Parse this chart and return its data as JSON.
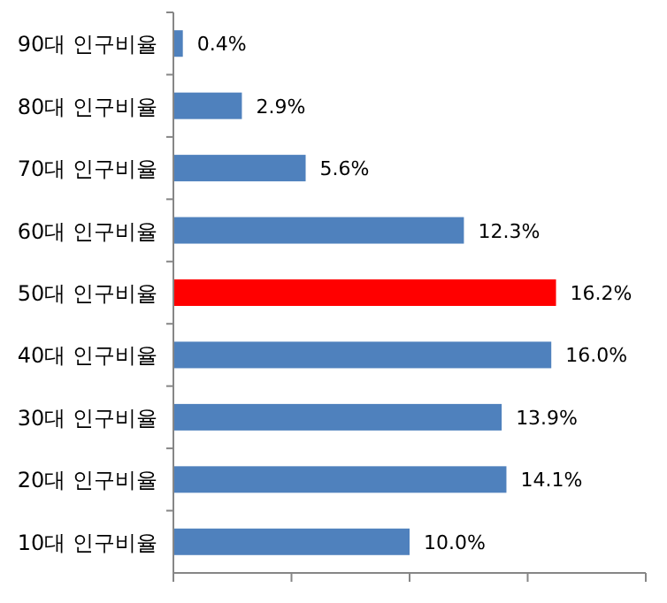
{
  "chart_data": {
    "type": "bar",
    "orientation": "horizontal",
    "categories": [
      "90대 인구비율",
      "80대 인구비율",
      "70대 인구비율",
      "60대 인구비율",
      "50대 인구비율",
      "40대 인구비율",
      "30대 인구비율",
      "20대 인구비율",
      "10대 인구비율"
    ],
    "values": [
      0.4,
      2.9,
      5.6,
      12.3,
      16.2,
      16.0,
      13.9,
      14.1,
      10.0
    ],
    "value_labels": [
      "0.4%",
      "2.9%",
      "5.6%",
      "12.3%",
      "16.2%",
      "16.0%",
      "13.9%",
      "14.1%",
      "10.0%"
    ],
    "colors": [
      "#4f81bd",
      "#4f81bd",
      "#4f81bd",
      "#4f81bd",
      "#ff0000",
      "#4f81bd",
      "#4f81bd",
      "#4f81bd",
      "#4f81bd"
    ],
    "xlim": [
      0,
      20
    ],
    "xticks": [
      {
        "value": 0,
        "label": null
      },
      {
        "value": 5,
        "label": null
      },
      {
        "value": 10,
        "label": null
      },
      {
        "value": 15,
        "label": null
      },
      {
        "value": 20,
        "label": null
      }
    ],
    "tick_labels": "y"
  }
}
